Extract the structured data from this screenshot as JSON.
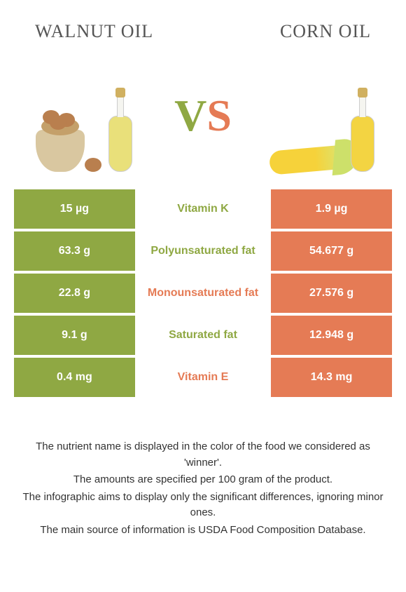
{
  "colors": {
    "left": "#8fa843",
    "right": "#e57b55",
    "left_text": "#ffffff",
    "right_text": "#ffffff",
    "oil_fill_left": "#e9e07a",
    "oil_fill_right": "#f3d442"
  },
  "titles": {
    "left": "WALNUT OIL",
    "right": "CORN OIL"
  },
  "vs": {
    "v": "V",
    "s": "S"
  },
  "rows": [
    {
      "label": "Vitamin K",
      "left": "15 µg",
      "right": "1.9 µg",
      "winner": "left"
    },
    {
      "label": "Polyunsaturated fat",
      "left": "63.3 g",
      "right": "54.677 g",
      "winner": "left"
    },
    {
      "label": "Monounsaturated fat",
      "left": "22.8 g",
      "right": "27.576 g",
      "winner": "right"
    },
    {
      "label": "Saturated fat",
      "left": "9.1 g",
      "right": "12.948 g",
      "winner": "left"
    },
    {
      "label": "Vitamin E",
      "left": "0.4 mg",
      "right": "14.3 mg",
      "winner": "right"
    }
  ],
  "footnotes": [
    "The nutrient name is displayed in the color of the food we considered as 'winner'.",
    "The amounts are specified per 100 gram of the product.",
    "The infographic aims to display only the significant differences, ignoring minor ones.",
    "The main source of information is USDA Food Composition Database."
  ]
}
